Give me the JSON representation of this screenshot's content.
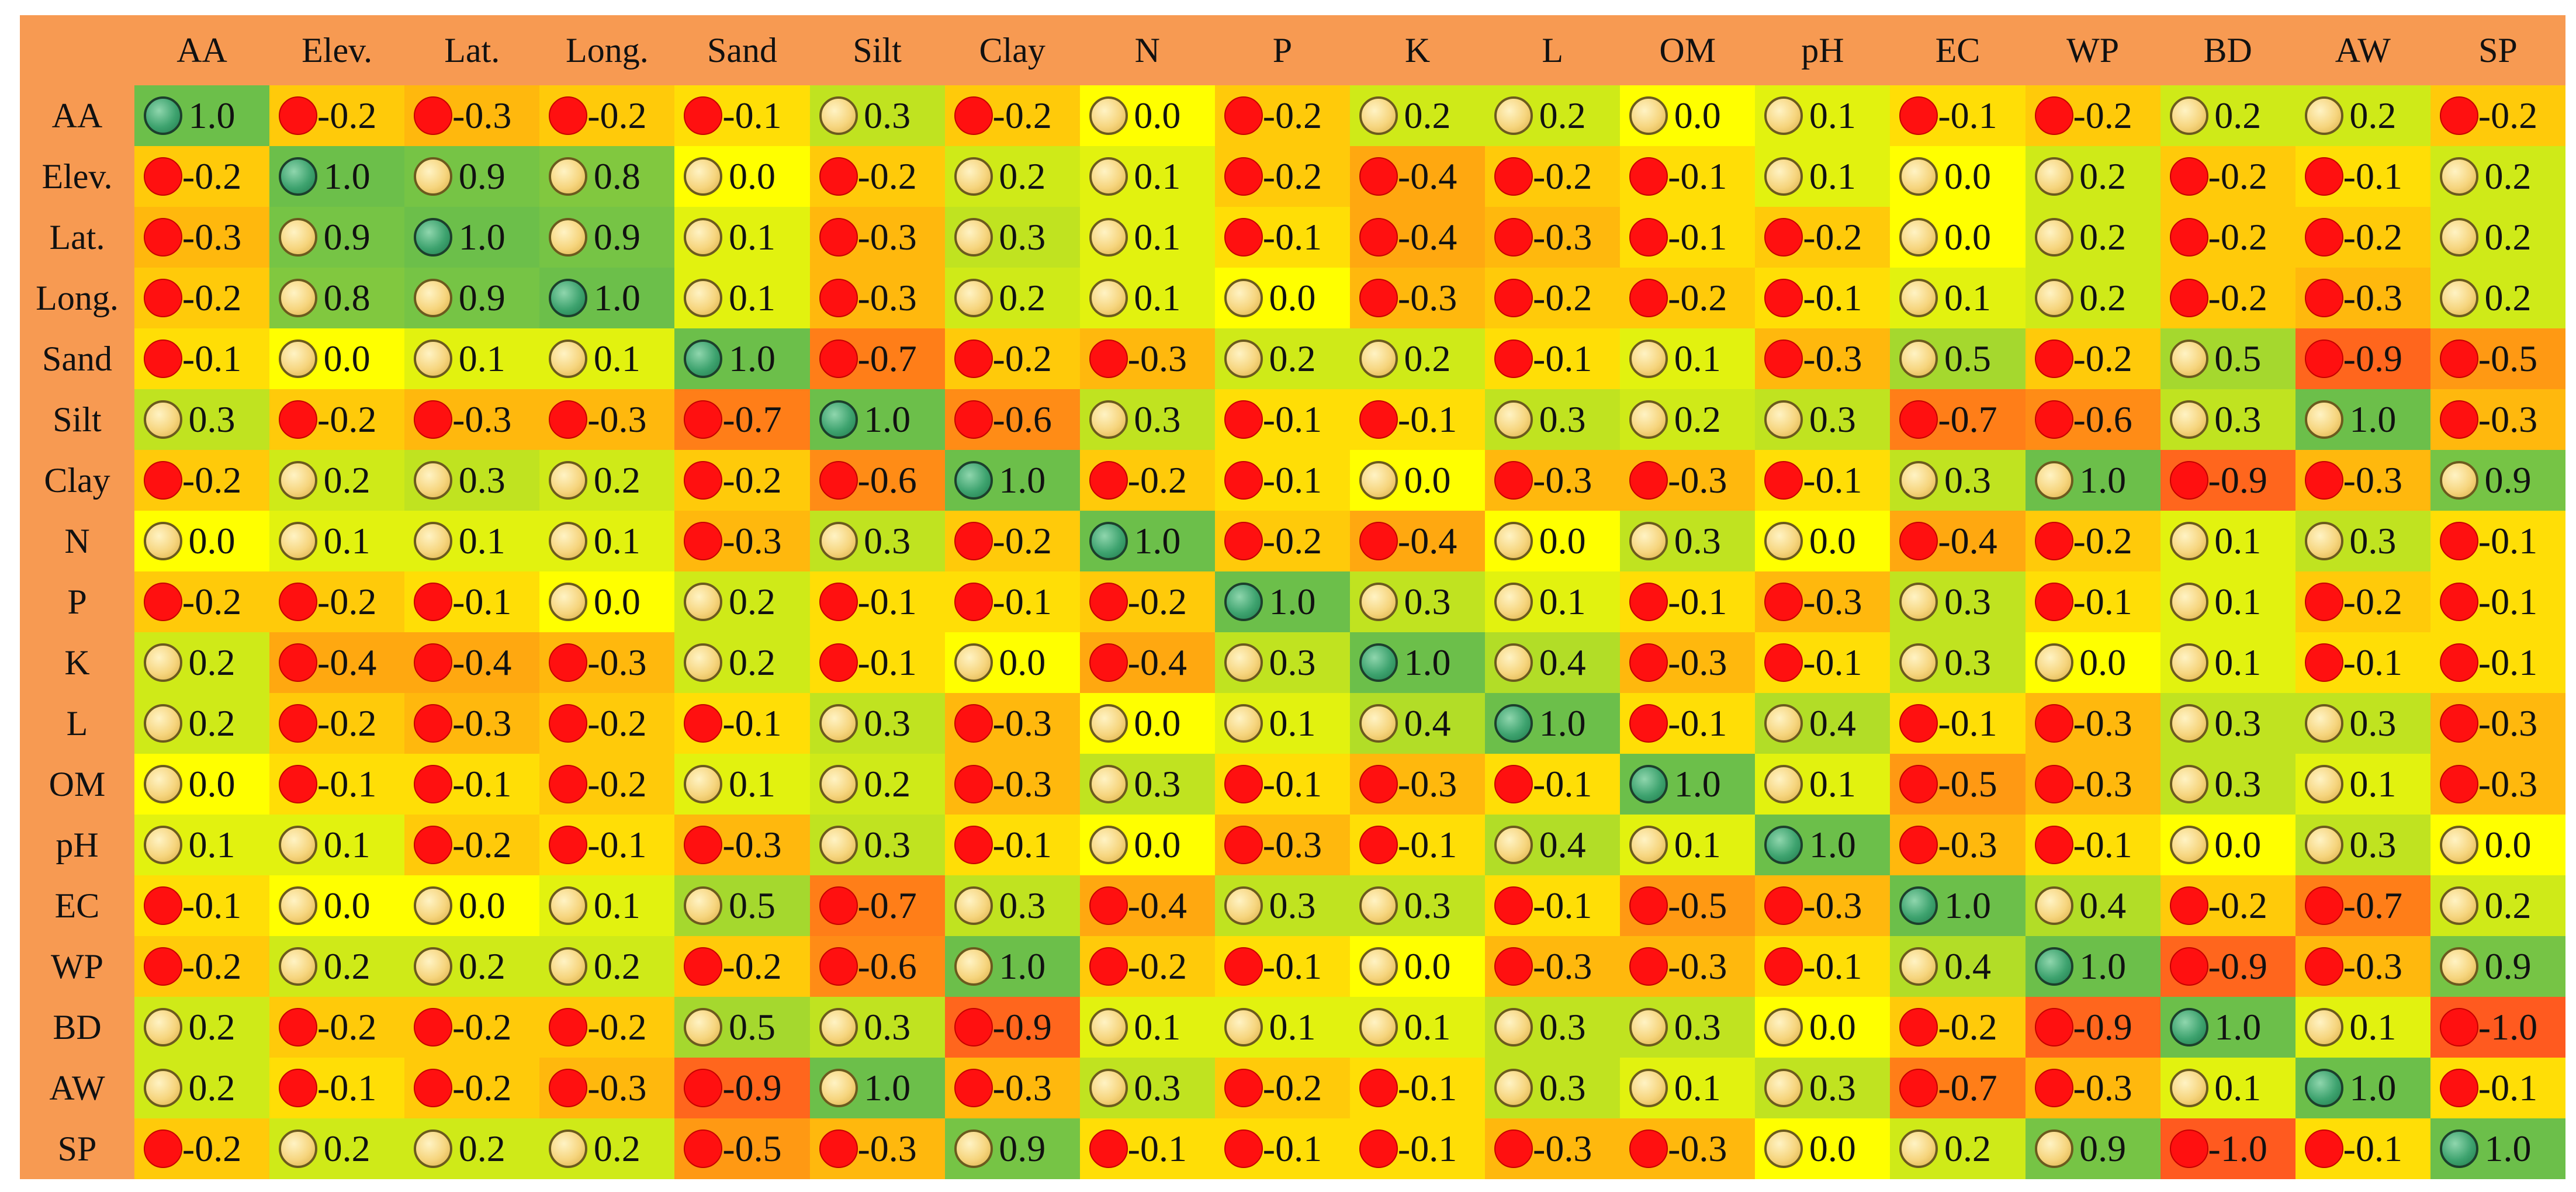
{
  "chart_data": {
    "type": "heatmap",
    "labels": [
      "AA",
      "Elev.",
      "Lat.",
      "Long.",
      "Sand",
      "Silt",
      "Clay",
      "N",
      "P",
      "K",
      "L",
      "OM",
      "pH",
      "EC",
      "WP",
      "BD",
      "AW",
      "SP"
    ],
    "values": [
      [
        1.0,
        -0.2,
        -0.3,
        -0.2,
        -0.1,
        0.3,
        -0.2,
        0.0,
        -0.2,
        0.2,
        0.2,
        0.0,
        0.1,
        -0.1,
        -0.2,
        0.2,
        0.2,
        -0.2
      ],
      [
        -0.2,
        1.0,
        0.9,
        0.8,
        0.0,
        -0.2,
        0.2,
        0.1,
        -0.2,
        -0.4,
        -0.2,
        -0.1,
        0.1,
        0.0,
        0.2,
        -0.2,
        -0.1,
        0.2
      ],
      [
        -0.3,
        0.9,
        1.0,
        0.9,
        0.1,
        -0.3,
        0.3,
        0.1,
        -0.1,
        -0.4,
        -0.3,
        -0.1,
        -0.2,
        0.0,
        0.2,
        -0.2,
        -0.2,
        0.2
      ],
      [
        -0.2,
        0.8,
        0.9,
        1.0,
        0.1,
        -0.3,
        0.2,
        0.1,
        0.0,
        -0.3,
        -0.2,
        -0.2,
        -0.1,
        0.1,
        0.2,
        -0.2,
        -0.3,
        0.2
      ],
      [
        -0.1,
        0.0,
        0.1,
        0.1,
        1.0,
        -0.7,
        -0.2,
        -0.3,
        0.2,
        0.2,
        -0.1,
        0.1,
        -0.3,
        0.5,
        -0.2,
        0.5,
        -0.9,
        -0.5
      ],
      [
        0.3,
        -0.2,
        -0.3,
        -0.3,
        -0.7,
        1.0,
        -0.6,
        0.3,
        -0.1,
        -0.1,
        0.3,
        0.2,
        0.3,
        -0.7,
        -0.6,
        0.3,
        1.0,
        -0.3
      ],
      [
        -0.2,
        0.2,
        0.3,
        0.2,
        -0.2,
        -0.6,
        1.0,
        -0.2,
        -0.1,
        0.0,
        -0.3,
        -0.3,
        -0.1,
        0.3,
        1.0,
        -0.9,
        -0.3,
        0.9
      ],
      [
        0.0,
        0.1,
        0.1,
        0.1,
        -0.3,
        0.3,
        -0.2,
        1.0,
        -0.2,
        -0.4,
        0.0,
        0.3,
        0.0,
        -0.4,
        -0.2,
        0.1,
        0.3,
        -0.1
      ],
      [
        -0.2,
        -0.2,
        -0.1,
        0.0,
        0.2,
        -0.1,
        -0.1,
        -0.2,
        1.0,
        0.3,
        0.1,
        -0.1,
        -0.3,
        0.3,
        -0.1,
        0.1,
        -0.2,
        -0.1
      ],
      [
        0.2,
        -0.4,
        -0.4,
        -0.3,
        0.2,
        -0.1,
        0.0,
        -0.4,
        0.3,
        1.0,
        0.4,
        -0.3,
        -0.1,
        0.3,
        0.0,
        0.1,
        -0.1,
        -0.1
      ],
      [
        0.2,
        -0.2,
        -0.3,
        -0.2,
        -0.1,
        0.3,
        -0.3,
        0.0,
        0.1,
        0.4,
        1.0,
        -0.1,
        0.4,
        -0.1,
        -0.3,
        0.3,
        0.3,
        -0.3
      ],
      [
        0.0,
        -0.1,
        -0.1,
        -0.2,
        0.1,
        0.2,
        -0.3,
        0.3,
        -0.1,
        -0.3,
        -0.1,
        1.0,
        0.1,
        -0.5,
        -0.3,
        0.3,
        0.1,
        -0.3
      ],
      [
        0.1,
        0.1,
        -0.2,
        -0.1,
        -0.3,
        0.3,
        -0.1,
        0.0,
        -0.3,
        -0.1,
        0.4,
        0.1,
        1.0,
        -0.3,
        -0.1,
        0.0,
        0.3,
        0.0
      ],
      [
        -0.1,
        0.0,
        0.0,
        0.1,
        0.5,
        -0.7,
        0.3,
        -0.4,
        0.3,
        0.3,
        -0.1,
        -0.5,
        -0.3,
        1.0,
        0.4,
        -0.2,
        -0.7,
        0.2
      ],
      [
        -0.2,
        0.2,
        0.2,
        0.2,
        -0.2,
        -0.6,
        1.0,
        -0.2,
        -0.1,
        0.0,
        -0.3,
        -0.3,
        -0.1,
        0.4,
        1.0,
        -0.9,
        -0.3,
        0.9
      ],
      [
        0.2,
        -0.2,
        -0.2,
        -0.2,
        0.5,
        0.3,
        -0.9,
        0.1,
        0.1,
        0.1,
        0.3,
        0.3,
        0.0,
        -0.2,
        -0.9,
        1.0,
        0.1,
        -1.0
      ],
      [
        0.2,
        -0.1,
        -0.2,
        -0.3,
        -0.9,
        1.0,
        -0.3,
        0.3,
        -0.2,
        -0.1,
        0.3,
        0.1,
        0.3,
        -0.7,
        -0.3,
        0.1,
        1.0,
        -0.1
      ],
      [
        -0.2,
        0.2,
        0.2,
        0.2,
        -0.5,
        -0.3,
        0.9,
        -0.1,
        -0.1,
        -0.1,
        -0.3,
        -0.3,
        0.0,
        0.2,
        0.9,
        -1.0,
        -0.1,
        1.0
      ]
    ],
    "value_range": [
      -1.0,
      1.0
    ],
    "colors": {
      "header": "#f79a52",
      "strong_negative": "#ff5a1f",
      "neutral": "#ffff00",
      "strong_positive": "#6cbf4a",
      "negative_marker": "#ff1010",
      "positive_marker": "#f6d57e",
      "diagonal_marker": "#3ea36f"
    }
  }
}
